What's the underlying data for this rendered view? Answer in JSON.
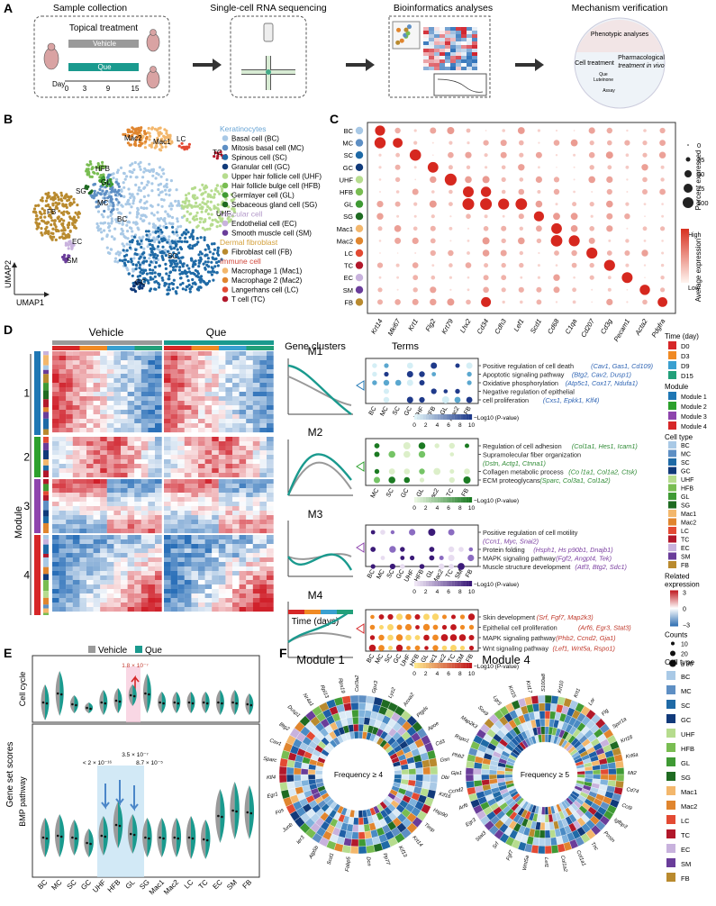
{
  "panel_labels": [
    "A",
    "B",
    "C",
    "D",
    "E",
    "F"
  ],
  "panel_a": {
    "titles": [
      "Sample collection",
      "Single-cell RNA sequencing",
      "Bioinformatics analyses",
      "Mechanism verification"
    ],
    "box_title": "Topical treatment",
    "vehicle": "Vehicle",
    "que": "Que",
    "day_label": "Day",
    "days": [
      "0",
      "3",
      "9",
      "15"
    ],
    "mech_top": "Phenotypic analyses",
    "mech_left": "Cell treatment",
    "mech_right_1": "Pharmacological",
    "mech_right_2": "treatment in vivo",
    "mech_small_1": "Que",
    "mech_small_2": "Luteinone",
    "mech_small_3": "Assay",
    "colors": {
      "vehicle": "#9a9a9a",
      "que": "#1a9a8e"
    }
  },
  "panel_b": {
    "axis_x": "UMAP1",
    "axis_y": "UMAP2",
    "cluster_labels": [
      "Mac2",
      "Mac1",
      "LC",
      "TC",
      "HFB",
      "GL",
      "SG",
      "MC",
      "FB",
      "BC",
      "UHF",
      "EC",
      "SM",
      "SC",
      "GC"
    ],
    "groups": [
      {
        "title": "Keratinocytes",
        "color": "#6aa6d6",
        "items": [
          {
            "label": "Basal cell (BC)",
            "color": "#a9c9e6"
          },
          {
            "label": "Mitosis basal cell (MC)",
            "color": "#5e8fc4"
          },
          {
            "label": "Spinous cell (SC)",
            "color": "#1f6aa6"
          },
          {
            "label": "Granular cell (GC)",
            "color": "#113a7a"
          },
          {
            "label": "Upper hair follicle cell (UHF)",
            "color": "#b6dc8e"
          },
          {
            "label": "Hair follicle bulge cell (HFB)",
            "color": "#79bd52"
          },
          {
            "label": "Germlayer cell (GL)",
            "color": "#3f9a34"
          },
          {
            "label": "Sebaceous gland cell (SG)",
            "color": "#1f6b22"
          }
        ]
      },
      {
        "title": "Vascular cell",
        "color": "#b399c9",
        "items": [
          {
            "label": "Endothelial cell (EC)",
            "color": "#c8b2dd"
          },
          {
            "label": "Smooth muscle cell (SM)",
            "color": "#6a3d9a"
          }
        ]
      },
      {
        "title": "Dermal fibroblast",
        "color": "#d4a03c",
        "items": [
          {
            "label": "Fibroblast cell (FB)",
            "color": "#b98a2e"
          }
        ]
      },
      {
        "title": "Immune cell",
        "color": "#d0483c",
        "items": [
          {
            "label": "Macrophage 1 (Mac1)",
            "color": "#f3b76c"
          },
          {
            "label": "Macrophage 2 (Mac2)",
            "color": "#e0852e"
          },
          {
            "label": "Langerhans cell (LC)",
            "color": "#e34a33"
          },
          {
            "label": "T cell (TC)",
            "color": "#b2182b"
          }
        ]
      }
    ]
  },
  "panel_c": {
    "rows": [
      "BC",
      "MC",
      "SC",
      "GC",
      "UHF",
      "HFB",
      "GL",
      "SG",
      "Mac1",
      "Mac2",
      "LC",
      "TC",
      "EC",
      "SM",
      "FB"
    ],
    "row_colors": [
      "#a9c9e6",
      "#5e8fc4",
      "#1f6aa6",
      "#113a7a",
      "#b6dc8e",
      "#79bd52",
      "#3f9a34",
      "#1f6b22",
      "#f3b76c",
      "#e0852e",
      "#e34a33",
      "#b2182b",
      "#c8b2dd",
      "#6a3d9a",
      "#b98a2e"
    ],
    "genes": [
      "Krt14",
      "Mki67",
      "Krt1",
      "Flg2",
      "Krt79",
      "Lhx2",
      "Cd34",
      "Cdh3",
      "Lef1",
      "Scd1",
      "Cd68",
      "C1qa",
      "Cd207",
      "Cd3g",
      "Pecam1",
      "Acta2",
      "Pdgfra"
    ],
    "size_legend_title": "Percent expressed",
    "size_levels": [
      "0",
      "25",
      "50",
      "75",
      "100"
    ],
    "color_legend_title": "Average expression",
    "color_high": "High",
    "color_low": "Low"
  },
  "panel_d": {
    "vehicle": "Vehicle",
    "que": "Que",
    "gene_clusters_title": "Gene clusters",
    "terms_title": "Terms",
    "module_axis": "Module",
    "time_axis": "Time (days)",
    "modules": [
      {
        "id": "1",
        "cluster": "M1",
        "color": "#1f77b4",
        "terms": [
          {
            "name": "Positive regulation of cell death",
            "genes": "(Cav1, Gas1, Cd109)"
          },
          {
            "name": "Apoptotic signaling pathway",
            "genes": "(Btg2, Cav2, Dusp1)"
          },
          {
            "name": "Oxidative phosphorylation",
            "genes": "(Atp5c1, Cox17, Ndufa1)"
          },
          {
            "name": "Negative regulation of epithelial",
            "genes": ""
          },
          {
            "name": "cell proliferation",
            "genes": "(Cxs1, Epkk1, Klf4)"
          }
        ],
        "cells": [
          "BC",
          "MC",
          "SC",
          "GC",
          "UHF",
          "HFB",
          "GL",
          "Mac2",
          "FB"
        ],
        "scale_label": "−Log10 (P-value)",
        "scale_ticks": [
          "0",
          "2",
          "4",
          "6",
          "8",
          "10"
        ],
        "scale_colors": [
          "#e0f3f8",
          "#1f3a8a"
        ],
        "text_color": "#2d63b3"
      },
      {
        "id": "2",
        "cluster": "M2",
        "color": "#2ca02c",
        "terms": [
          {
            "name": "Regulation of cell adhesion",
            "genes": "(Col1a1, Hes1, Icam1)"
          },
          {
            "name": "Supramolecular fiber organization",
            "genes": ""
          },
          {
            "name": "",
            "genes": "(Dstn, Actg1, Ctnna1)"
          },
          {
            "name": "Collagen metabolic process",
            "genes": "(Co l1a1, Col1a2, Ctsk)"
          },
          {
            "name": "ECM proteoglycans",
            "genes": "(Sparc, Col3a1, Col1a2)"
          }
        ],
        "cells": [
          "MC",
          "SC",
          "GC",
          "GL",
          "Mac2",
          "TC",
          "FB"
        ],
        "scale_label": "−Log10 (P-value)",
        "scale_ticks": [
          "0",
          "2",
          "4",
          "6",
          "8",
          "10"
        ],
        "scale_colors": [
          "#e8f5e0",
          "#1b7a22"
        ],
        "text_color": "#2e8a34"
      },
      {
        "id": "3",
        "cluster": "M3",
        "color": "#8e44ad",
        "terms": [
          {
            "name": "Positive regulation of cell motility",
            "genes": ""
          },
          {
            "name": "",
            "genes": "(Ccn1, Myc, Snai2)"
          },
          {
            "name": "Protein folding",
            "genes": "(Hsph1, Hs p90b1, Dnajb1)"
          },
          {
            "name": "MAPK signaling pathway",
            "genes": "(Fgf2, Angpt4, Tek)"
          },
          {
            "name": "Muscle structure development",
            "genes": "(Atf3, Btg2, Sdc1)"
          }
        ],
        "cells": [
          "BC",
          "MC",
          "SC",
          "GC",
          "UHF",
          "HFB",
          "GL",
          "Mac2",
          "TC",
          "SM",
          "FB"
        ],
        "scale_label": "−Log10 (P-value)",
        "scale_ticks": [
          "0",
          "2",
          "4",
          "6",
          "8",
          "10"
        ],
        "scale_colors": [
          "#efe6f5",
          "#3b1a78"
        ],
        "text_color": "#7a3fa0"
      },
      {
        "id": "4",
        "cluster": "M4",
        "color": "#d62728",
        "terms": [
          {
            "name": "Skin development",
            "genes": "(Srf, Fgf7, Map2k3)"
          },
          {
            "name": "Epithelial cell proliferation",
            "genes": "(Arf6, Egr3, Stat3)"
          },
          {
            "name": "MAPK signaling pathway",
            "genes": "(Phb2, Ccnd2, Gja1)"
          },
          {
            "name": "Wnt signaling pathway",
            "genes": "(Lef1, Wnt5a, Rspo1)"
          }
        ],
        "cells": [
          "BC",
          "MC",
          "SC",
          "GC",
          "UHF",
          "HFB",
          "GL",
          "Mac1",
          "Mac2",
          "TC",
          "SM",
          "FB"
        ],
        "scale_label": "−Log10 (P-value)",
        "scale_ticks": [
          "0",
          "2",
          "4",
          "6",
          "8",
          "10"
        ],
        "scale_colors": [
          "#fde68a",
          "#c0181e"
        ],
        "text_color": "#c0392b"
      }
    ],
    "side_legend": {
      "time_title": "Time (day)",
      "times": [
        {
          "label": "D0",
          "color": "#d62728"
        },
        {
          "label": "D3",
          "color": "#f08a24"
        },
        {
          "label": "D9",
          "color": "#3aa0d0"
        },
        {
          "label": "D15",
          "color": "#22a07a"
        }
      ],
      "module_title": "Module",
      "modules": [
        {
          "label": "Module 1",
          "color": "#1f77b4"
        },
        {
          "label": "Module 2",
          "color": "#2ca02c"
        },
        {
          "label": "Module 3",
          "color": "#8e44ad"
        },
        {
          "label": "Module 4",
          "color": "#d62728"
        }
      ],
      "celltype_title": "Cell type",
      "celltypes": [
        {
          "label": "BC",
          "color": "#a9c9e6"
        },
        {
          "label": "MC",
          "color": "#5e8fc4"
        },
        {
          "label": "SC",
          "color": "#1f6aa6"
        },
        {
          "label": "GC",
          "color": "#113a7a"
        },
        {
          "label": "UHF",
          "color": "#b6dc8e"
        },
        {
          "label": "HFB",
          "color": "#79bd52"
        },
        {
          "label": "GL",
          "color": "#3f9a34"
        },
        {
          "label": "SG",
          "color": "#1f6b22"
        },
        {
          "label": "Mac1",
          "color": "#f3b76c"
        },
        {
          "label": "Mac2",
          "color": "#e0852e"
        },
        {
          "label": "LC",
          "color": "#e34a33"
        },
        {
          "label": "TC",
          "color": "#b2182b"
        },
        {
          "label": "EC",
          "color": "#c8b2dd"
        },
        {
          "label": "SM",
          "color": "#6a3d9a"
        },
        {
          "label": "FB",
          "color": "#b98a2e"
        }
      ],
      "expr_title_1": "Related",
      "expr_title_2": "expression",
      "expr_ticks": [
        "3",
        "0",
        "−3"
      ],
      "counts_title": "Counts",
      "counts": [
        "10",
        "20",
        "≥ 30"
      ]
    }
  },
  "panel_e": {
    "legend_vehicle": "Vehicle",
    "legend_que": "Que",
    "y_title": "Gene set scores",
    "rows": [
      "Cell cycle",
      "BMP pathway"
    ],
    "cells": [
      "BC",
      "MC",
      "SC",
      "GC",
      "UHF",
      "HFB",
      "GL",
      "SG",
      "Mac1",
      "Mac2",
      "LC",
      "TC",
      "EC",
      "SM",
      "FB"
    ],
    "annot_cc": "1.8 × 10⁻⁷",
    "annot_bmp_1": "3.5 × 10⁻⁷",
    "annot_bmp_2": "< 2 × 10⁻¹⁶",
    "annot_bmp_3": "8.7 × 10⁻⁵"
  },
  "panel_f": {
    "m1_title": "Module 1",
    "m4_title": "Module 4",
    "m1_center": "Frequency ≥ 4",
    "m4_center": "Frequency ≥ 5",
    "legend_title": "Cell type",
    "legend": [
      {
        "label": "BC",
        "color": "#a9c9e6"
      },
      {
        "label": "MC",
        "color": "#5e8fc4"
      },
      {
        "label": "SC",
        "color": "#1f6aa6"
      },
      {
        "label": "GC",
        "color": "#113a7a"
      },
      {
        "label": "UHF",
        "color": "#b6dc8e"
      },
      {
        "label": "HFB",
        "color": "#79bd52"
      },
      {
        "label": "GL",
        "color": "#3f9a34"
      },
      {
        "label": "SG",
        "color": "#1f6b22"
      },
      {
        "label": "Mac1",
        "color": "#f3b76c"
      },
      {
        "label": "Mac2",
        "color": "#e0852e"
      },
      {
        "label": "LC",
        "color": "#e34a33"
      },
      {
        "label": "TC",
        "color": "#b2182b"
      },
      {
        "label": "EC",
        "color": "#c8b2dd"
      },
      {
        "label": "SM",
        "color": "#6a3d9a"
      },
      {
        "label": "FB",
        "color": "#b98a2e"
      }
    ],
    "m1_genes": [
      "Col3a2",
      "Gpx3",
      "Lyz2",
      "Anxa2",
      "Ptgds",
      "Apoe",
      "Cd3",
      "Gsn",
      "Dbi",
      "Kif16",
      "Hsp90",
      "Timp",
      "Krt14",
      "Kif13",
      "Pp77",
      "Dcn",
      "Fabp5",
      "Scd1",
      "Atp5b",
      "Ier3",
      "Junb",
      "Fos",
      "Egr1",
      "Klf4",
      "Sparc",
      "Cav1",
      "Btg2",
      "Dusp1",
      "Nr4a1",
      "Rpl13",
      "Rps19"
    ],
    "m4_genes": [
      "S100a8",
      "Krt10",
      "Krt1",
      "Lor",
      "Flg",
      "Sprr1a",
      "Krt16",
      "Krt6a",
      "Mt2",
      "Cd74",
      "Ccl9",
      "Igfbp3",
      "Postn",
      "Tnc",
      "Col1a1",
      "Col1a2",
      "Lef1",
      "Wnt5a",
      "Fgf7",
      "Srf",
      "Stat3",
      "Egr3",
      "Arf6",
      "Ccnd2",
      "Gja1",
      "Phb2",
      "Rspo1",
      "Map2k3",
      "Sox9",
      "Lgr5",
      "Krt15",
      "Krt17"
    ]
  }
}
